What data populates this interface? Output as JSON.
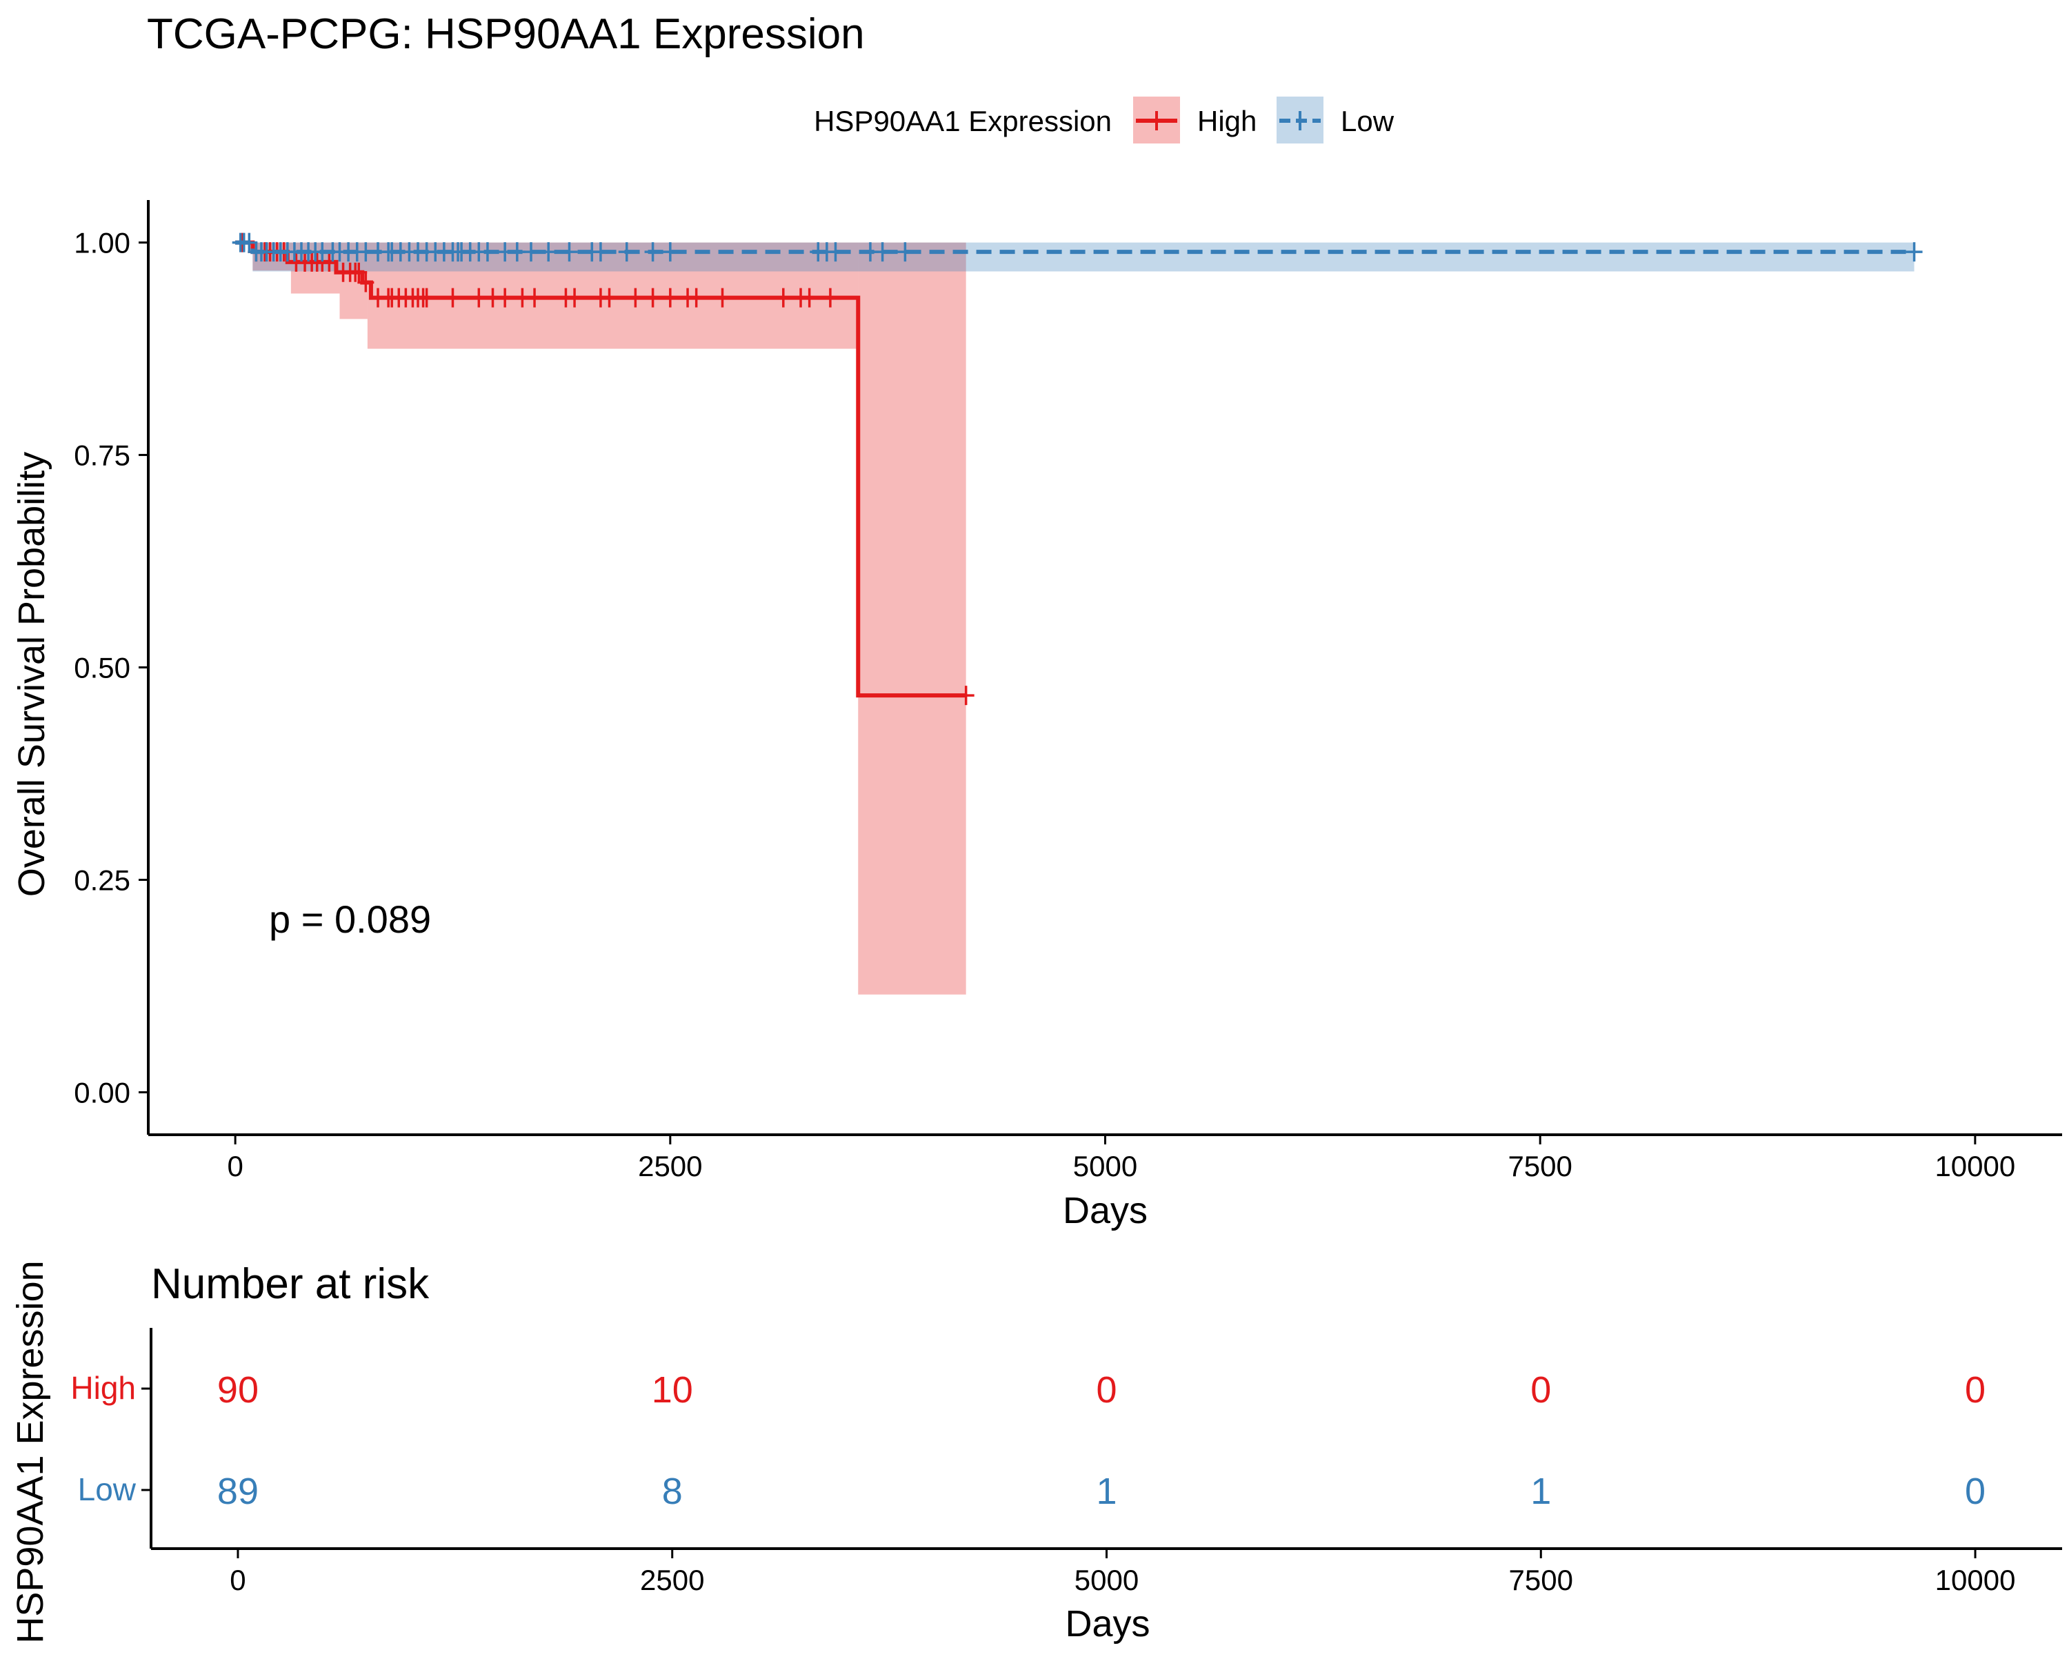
{
  "title": "TCGA-PCPG: HSP90AA1 Expression",
  "legend": {
    "title": "HSP90AA1 Expression",
    "items": [
      "High",
      "Low"
    ]
  },
  "pvalue_text": "p = 0.089",
  "risk_table": {
    "title": "Number at risk",
    "ylabel": "HSP90AA1 Expression",
    "xlabel": "Days",
    "times": [
      0,
      2500,
      5000,
      7500,
      10000
    ],
    "rows": [
      {
        "name": "High",
        "color": "#E41A1C",
        "counts": [
          90,
          10,
          0,
          0,
          0
        ]
      },
      {
        "name": "Low",
        "color": "#377EB8",
        "counts": [
          89,
          8,
          1,
          1,
          0
        ]
      }
    ]
  },
  "chart_data": {
    "type": "line",
    "subtype": "kaplan-meier",
    "title": "TCGA-PCPG: HSP90AA1 Expression",
    "xlabel": "Days",
    "ylabel": "Overall Survival Probability",
    "xlim": [
      -500,
      10500
    ],
    "ylim": [
      -0.05,
      1.05
    ],
    "xticks": [
      0,
      2500,
      5000,
      7500,
      10000
    ],
    "yticks": [
      0.0,
      0.25,
      0.5,
      0.75,
      1.0
    ],
    "ytick_labels": [
      "0.00",
      "0.25",
      "0.50",
      "0.75",
      "1.00"
    ],
    "legend_position": "top",
    "grid": false,
    "series": [
      {
        "name": "High",
        "color": "#E41A1C",
        "dash": false,
        "steps": [
          [
            0,
            1.0
          ],
          [
            100,
            0.989
          ],
          [
            300,
            0.977
          ],
          [
            580,
            0.965
          ],
          [
            730,
            0.953
          ],
          [
            780,
            0.935
          ],
          [
            3580,
            0.467
          ],
          [
            4200,
            0.467
          ]
        ],
        "ci": [
          [
            0,
            1.0,
            1.0
          ],
          [
            100,
            0.967,
            1.0
          ],
          [
            320,
            0.94,
            1.0
          ],
          [
            600,
            0.91,
            1.0
          ],
          [
            760,
            0.875,
            1.0
          ],
          [
            3580,
            0.115,
            1.0
          ],
          [
            4200,
            0.115,
            1.0
          ]
        ],
        "censor_times": [
          40,
          120,
          170,
          200,
          240,
          280,
          350,
          400,
          440,
          470,
          500,
          540,
          620,
          660,
          690,
          710,
          750,
          820,
          880,
          900,
          940,
          980,
          1020,
          1050,
          1080,
          1100,
          1250,
          1400,
          1480,
          1550,
          1650,
          1720,
          1900,
          1950,
          2100,
          2150,
          2300,
          2400,
          2500,
          2600,
          2650,
          2800,
          3150,
          3250,
          3300,
          3420,
          4200
        ]
      },
      {
        "name": "Low",
        "color": "#377EB8",
        "dash": true,
        "steps": [
          [
            0,
            1.0
          ],
          [
            100,
            0.989
          ],
          [
            9650,
            0.989
          ]
        ],
        "ci": [
          [
            0,
            1.0,
            1.0
          ],
          [
            100,
            0.966,
            1.0
          ],
          [
            9650,
            0.966,
            1.0
          ]
        ],
        "censor_times": [
          30,
          50,
          80,
          120,
          150,
          180,
          220,
          260,
          300,
          340,
          380,
          420,
          460,
          500,
          560,
          600,
          650,
          700,
          750,
          820,
          880,
          900,
          950,
          1000,
          1050,
          1100,
          1150,
          1200,
          1250,
          1280,
          1300,
          1350,
          1400,
          1450,
          1550,
          1620,
          1700,
          1800,
          1920,
          2050,
          2100,
          2250,
          2400,
          2500,
          3350,
          3400,
          3450,
          3650,
          3720,
          3850,
          9650
        ]
      }
    ]
  }
}
